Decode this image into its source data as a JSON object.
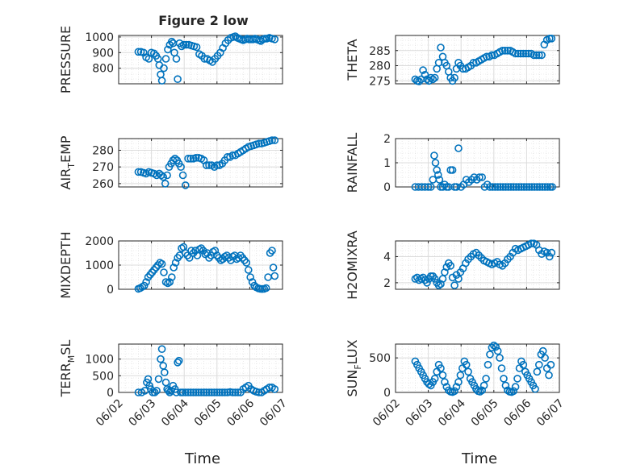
{
  "figure": {
    "title": "Figure 2 low",
    "marker_color": "#0072BD"
  },
  "chart_data": [
    {
      "type": "scatter",
      "ylabel": "PRESSURE",
      "ylim": [
        700,
        1010
      ],
      "yticks": [
        800,
        900,
        1000
      ],
      "ytick_labels": [
        "800",
        "900",
        "1000"
      ],
      "x": [
        0.6,
        0.68,
        0.76,
        0.84,
        0.92,
        1.0,
        1.08,
        1.14,
        1.2,
        1.24,
        1.28,
        1.32,
        1.38,
        1.44,
        1.5,
        1.56,
        1.62,
        1.66,
        1.7,
        1.76,
        1.8,
        1.86,
        1.92,
        1.98,
        2.06,
        2.14,
        2.22,
        2.3,
        2.38,
        2.46,
        2.54,
        2.62,
        2.7,
        2.78,
        2.86,
        2.94,
        3.02,
        3.1,
        3.18,
        3.26,
        3.34,
        3.42,
        3.5,
        3.56,
        3.62,
        3.68,
        3.74,
        3.8,
        3.86,
        3.92,
        3.98,
        4.04,
        4.1,
        4.16,
        4.22,
        4.28,
        4.34,
        4.4,
        4.46,
        4.52,
        4.6,
        4.68,
        4.76
      ],
      "y": [
        905,
        905,
        900,
        870,
        860,
        900,
        895,
        880,
        860,
        820,
        760,
        720,
        800,
        860,
        920,
        950,
        970,
        960,
        900,
        860,
        730,
        960,
        940,
        950,
        950,
        950,
        945,
        940,
        935,
        890,
        880,
        860,
        860,
        850,
        840,
        860,
        880,
        900,
        930,
        960,
        980,
        995,
        1000,
        1005,
        995,
        990,
        985,
        980,
        985,
        990,
        985,
        985,
        985,
        990,
        985,
        980,
        975,
        985,
        990,
        990,
        995,
        990,
        985
      ]
    },
    {
      "type": "scatter",
      "ylabel": "THETA",
      "ylim": [
        274,
        290
      ],
      "yticks": [
        275,
        280,
        285
      ],
      "ytick_labels": [
        "275",
        "280",
        "285"
      ],
      "x": [
        0.6,
        0.66,
        0.72,
        0.78,
        0.84,
        0.9,
        0.96,
        1.02,
        1.08,
        1.14,
        1.2,
        1.26,
        1.32,
        1.38,
        1.44,
        1.5,
        1.56,
        1.62,
        1.68,
        1.74,
        1.8,
        1.86,
        1.92,
        1.98,
        2.06,
        2.14,
        2.22,
        2.3,
        2.38,
        2.46,
        2.54,
        2.62,
        2.7,
        2.78,
        2.86,
        2.94,
        3.02,
        3.1,
        3.18,
        3.26,
        3.34,
        3.42,
        3.5,
        3.58,
        3.66,
        3.74,
        3.82,
        3.9,
        3.98,
        4.06,
        4.14,
        4.22,
        4.3,
        4.38,
        4.46,
        4.54,
        4.62,
        4.7,
        4.76
      ],
      "y": [
        275.5,
        275,
        274.8,
        275.5,
        278.5,
        277,
        275.5,
        275,
        276,
        275.5,
        276,
        279,
        281,
        286,
        283,
        281,
        280,
        278,
        276,
        275,
        276,
        279,
        281,
        280,
        279,
        279,
        279.5,
        280,
        281,
        281,
        281.5,
        282,
        282.5,
        283,
        283,
        283.5,
        283.5,
        284,
        284.5,
        285,
        285,
        285,
        285,
        284.5,
        284,
        284,
        284,
        284,
        284,
        284,
        284,
        283.5,
        283.5,
        283.5,
        283.5,
        287,
        288.5,
        289,
        289
      ]
    },
    {
      "type": "scatter",
      "ylabel_main": "AIR",
      "ylabel_sub": "T",
      "ylabel_rest": "EMP",
      "ylim": [
        258,
        287
      ],
      "yticks": [
        260,
        270,
        280
      ],
      "ytick_labels": [
        "260",
        "270",
        "280"
      ],
      "x": [
        0.6,
        0.68,
        0.76,
        0.84,
        0.92,
        1.0,
        1.08,
        1.16,
        1.24,
        1.3,
        1.36,
        1.42,
        1.48,
        1.54,
        1.6,
        1.66,
        1.72,
        1.78,
        1.84,
        1.9,
        1.96,
        2.04,
        2.12,
        2.2,
        2.28,
        2.36,
        2.44,
        2.52,
        2.6,
        2.68,
        2.76,
        2.84,
        2.92,
        3.0,
        3.08,
        3.16,
        3.24,
        3.32,
        3.4,
        3.48,
        3.56,
        3.64,
        3.72,
        3.8,
        3.88,
        3.96,
        4.04,
        4.12,
        4.2,
        4.28,
        4.36,
        4.44,
        4.52,
        4.6,
        4.68,
        4.76
      ],
      "y": [
        267,
        267,
        266.5,
        266,
        267,
        266.5,
        266,
        265,
        266,
        265,
        264,
        260,
        265,
        270,
        272,
        274,
        275,
        274,
        272,
        270,
        265,
        259,
        275,
        275,
        275,
        275.5,
        275.5,
        275,
        274,
        271,
        271,
        271,
        270,
        271,
        271,
        272,
        274,
        276,
        276,
        277,
        277,
        278,
        279,
        280,
        281,
        282,
        282.5,
        283,
        283.5,
        284,
        284,
        284.5,
        285,
        285.5,
        286,
        286
      ]
    },
    {
      "type": "scatter",
      "ylabel": "RAINFALL",
      "ylim": [
        0,
        2
      ],
      "yticks": [
        0,
        1,
        2
      ],
      "ytick_labels": [
        "0",
        "1",
        "2"
      ],
      "x": [
        0.6,
        0.7,
        0.8,
        0.9,
        1.0,
        1.08,
        1.14,
        1.18,
        1.22,
        1.26,
        1.3,
        1.34,
        1.38,
        1.44,
        1.5,
        1.56,
        1.62,
        1.68,
        1.74,
        1.8,
        1.86,
        1.92,
        2.0,
        2.08,
        2.16,
        2.24,
        2.32,
        2.4,
        2.48,
        2.56,
        2.64,
        2.72,
        2.8,
        2.88,
        2.96,
        3.04,
        3.12,
        3.2,
        3.28,
        3.36,
        3.44,
        3.52,
        3.6,
        3.68,
        3.76,
        3.84,
        3.92,
        4.0,
        4.08,
        4.16,
        4.24,
        4.32,
        4.4,
        4.48,
        4.56,
        4.64,
        4.72,
        4.78
      ],
      "y": [
        0,
        0,
        0,
        0,
        0,
        0,
        0.3,
        1.3,
        1.0,
        0.7,
        0.5,
        0.3,
        0,
        0,
        0.1,
        0,
        0,
        0.7,
        0.7,
        0,
        0,
        1.6,
        0,
        0.1,
        0.3,
        0.2,
        0.3,
        0.4,
        0.3,
        0.4,
        0.4,
        0,
        0.1,
        0,
        0,
        0,
        0,
        0,
        0,
        0,
        0,
        0,
        0,
        0,
        0,
        0,
        0,
        0,
        0,
        0,
        0,
        0,
        0,
        0,
        0,
        0,
        0,
        0
      ]
    },
    {
      "type": "scatter",
      "ylabel": "MIXDEPTH",
      "ylim": [
        0,
        2000
      ],
      "yticks": [
        0,
        1000,
        2000
      ],
      "ytick_labels": [
        "0",
        "1000",
        "2000"
      ],
      "x": [
        0.6,
        0.66,
        0.72,
        0.78,
        0.84,
        0.9,
        0.96,
        1.02,
        1.08,
        1.14,
        1.2,
        1.26,
        1.32,
        1.38,
        1.44,
        1.5,
        1.56,
        1.62,
        1.68,
        1.74,
        1.8,
        1.86,
        1.92,
        1.98,
        2.04,
        2.1,
        2.16,
        2.22,
        2.28,
        2.34,
        2.4,
        2.46,
        2.52,
        2.58,
        2.64,
        2.7,
        2.76,
        2.82,
        2.88,
        2.94,
        3.0,
        3.06,
        3.12,
        3.18,
        3.24,
        3.3,
        3.36,
        3.42,
        3.48,
        3.54,
        3.6,
        3.66,
        3.72,
        3.78,
        3.84,
        3.9,
        3.96,
        4.02,
        4.08,
        4.14,
        4.2,
        4.26,
        4.32,
        4.38,
        4.44,
        4.5,
        4.56,
        4.62,
        4.68,
        4.72,
        4.76
      ],
      "y": [
        20,
        50,
        100,
        150,
        300,
        500,
        600,
        700,
        800,
        900,
        1000,
        1100,
        1050,
        700,
        300,
        250,
        300,
        500,
        900,
        1100,
        1300,
        1400,
        1700,
        1750,
        1500,
        1400,
        1300,
        1600,
        1500,
        1600,
        1400,
        1650,
        1700,
        1600,
        1450,
        1500,
        1300,
        1400,
        1550,
        1600,
        1400,
        1300,
        1200,
        1250,
        1350,
        1400,
        1300,
        1200,
        1350,
        1400,
        1250,
        1300,
        1400,
        1300,
        1200,
        1100,
        800,
        500,
        300,
        150,
        80,
        40,
        20,
        10,
        20,
        50,
        500,
        1500,
        1600,
        900,
        550
      ]
    },
    {
      "type": "scatter",
      "ylabel": "H2OMIXRA",
      "ylim": [
        1.5,
        5.2
      ],
      "yticks": [
        2,
        4
      ],
      "ytick_labels": [
        "2",
        "4"
      ],
      "x": [
        0.6,
        0.66,
        0.72,
        0.78,
        0.84,
        0.9,
        0.96,
        1.02,
        1.08,
        1.14,
        1.2,
        1.26,
        1.32,
        1.38,
        1.44,
        1.5,
        1.56,
        1.62,
        1.68,
        1.74,
        1.8,
        1.86,
        1.92,
        1.98,
        2.06,
        2.14,
        2.22,
        2.3,
        2.38,
        2.46,
        2.54,
        2.62,
        2.7,
        2.78,
        2.86,
        2.94,
        3.02,
        3.1,
        3.18,
        3.26,
        3.34,
        3.42,
        3.5,
        3.58,
        3.66,
        3.74,
        3.82,
        3.9,
        3.98,
        4.06,
        4.14,
        4.22,
        4.3,
        4.38,
        4.46,
        4.54,
        4.62,
        4.7,
        4.76
      ],
      "y": [
        2.3,
        2.4,
        2.2,
        2.3,
        2.4,
        2.2,
        2.0,
        2.3,
        2.5,
        2.5,
        2.3,
        2.0,
        1.8,
        1.9,
        2.3,
        2.8,
        3.2,
        3.5,
        3.3,
        2.4,
        1.8,
        2.6,
        2.3,
        2.8,
        3.1,
        3.5,
        3.8,
        4.0,
        4.2,
        4.3,
        4.1,
        3.9,
        3.7,
        3.6,
        3.5,
        3.4,
        3.5,
        3.6,
        3.4,
        3.3,
        3.5,
        3.8,
        4.0,
        4.3,
        4.6,
        4.5,
        4.6,
        4.7,
        4.8,
        4.9,
        5.0,
        5.0,
        4.9,
        4.5,
        4.2,
        4.4,
        4.3,
        4.0,
        4.3
      ]
    },
    {
      "type": "scatter",
      "ylabel_main": "TERR",
      "ylabel_sub": "M",
      "ylabel_rest": "SL",
      "ylim": [
        0,
        1450
      ],
      "yticks": [
        0,
        500,
        1000
      ],
      "ytick_labels": [
        "0",
        "500",
        "1000"
      ],
      "x": [
        0.6,
        0.7,
        0.8,
        0.86,
        0.9,
        0.94,
        0.98,
        1.04,
        1.1,
        1.16,
        1.22,
        1.28,
        1.32,
        1.36,
        1.4,
        1.44,
        1.48,
        1.52,
        1.56,
        1.6,
        1.66,
        1.72,
        1.76,
        1.8,
        1.84,
        1.9,
        1.96,
        2.04,
        2.12,
        2.2,
        2.28,
        2.36,
        2.44,
        2.52,
        2.6,
        2.68,
        2.76,
        2.84,
        2.92,
        3.0,
        3.08,
        3.16,
        3.24,
        3.32,
        3.4,
        3.48,
        3.56,
        3.64,
        3.72,
        3.8,
        3.88,
        3.96,
        4.04,
        4.12,
        4.2,
        4.28,
        4.36,
        4.44,
        4.52,
        4.6,
        4.68,
        4.76
      ],
      "y": [
        0,
        0,
        50,
        300,
        400,
        200,
        100,
        0,
        0,
        50,
        400,
        1000,
        1300,
        800,
        600,
        300,
        100,
        50,
        0,
        50,
        200,
        100,
        0,
        900,
        950,
        0,
        0,
        0,
        0,
        0,
        0,
        0,
        0,
        0,
        0,
        0,
        0,
        0,
        0,
        0,
        0,
        0,
        0,
        0,
        10,
        0,
        0,
        0,
        0,
        100,
        150,
        200,
        100,
        50,
        20,
        0,
        0,
        50,
        100,
        150,
        150,
        100
      ]
    },
    {
      "type": "scatter",
      "ylabel_main": "SUN",
      "ylabel_sub": "F",
      "ylabel_rest": "LUX",
      "ylim": [
        0,
        700
      ],
      "yticks": [
        0,
        500
      ],
      "ytick_labels": [
        "0",
        "500"
      ],
      "x": [
        0.6,
        0.66,
        0.72,
        0.78,
        0.84,
        0.9,
        0.96,
        1.02,
        1.08,
        1.14,
        1.2,
        1.26,
        1.32,
        1.38,
        1.44,
        1.5,
        1.56,
        1.62,
        1.68,
        1.74,
        1.8,
        1.86,
        1.92,
        1.98,
        2.04,
        2.1,
        2.16,
        2.22,
        2.28,
        2.34,
        2.4,
        2.46,
        2.52,
        2.58,
        2.64,
        2.7,
        2.76,
        2.82,
        2.88,
        2.94,
        3.0,
        3.06,
        3.12,
        3.18,
        3.24,
        3.3,
        3.36,
        3.42,
        3.48,
        3.54,
        3.6,
        3.66,
        3.72,
        3.78,
        3.84,
        3.9,
        3.96,
        4.02,
        4.08,
        4.14,
        4.2,
        4.26,
        4.32,
        4.38,
        4.44,
        4.5,
        4.56,
        4.62,
        4.68,
        4.74
      ],
      "y": [
        450,
        400,
        350,
        300,
        250,
        200,
        150,
        120,
        100,
        150,
        200,
        300,
        400,
        350,
        250,
        150,
        80,
        30,
        10,
        5,
        20,
        80,
        150,
        250,
        350,
        450,
        400,
        300,
        200,
        150,
        100,
        50,
        20,
        10,
        30,
        100,
        200,
        400,
        550,
        650,
        680,
        660,
        600,
        500,
        350,
        200,
        100,
        30,
        10,
        5,
        20,
        80,
        200,
        350,
        450,
        400,
        300,
        250,
        200,
        150,
        100,
        50,
        300,
        400,
        550,
        600,
        500,
        350,
        250,
        400
      ]
    }
  ],
  "x_axis": {
    "ticks": [
      0,
      1,
      2,
      3,
      4,
      5
    ],
    "tick_labels": [
      "06/02",
      "06/03",
      "06/04",
      "06/05",
      "06/06",
      "06/07"
    ],
    "xlim": [
      0,
      5
    ],
    "xlabel": "Time"
  }
}
